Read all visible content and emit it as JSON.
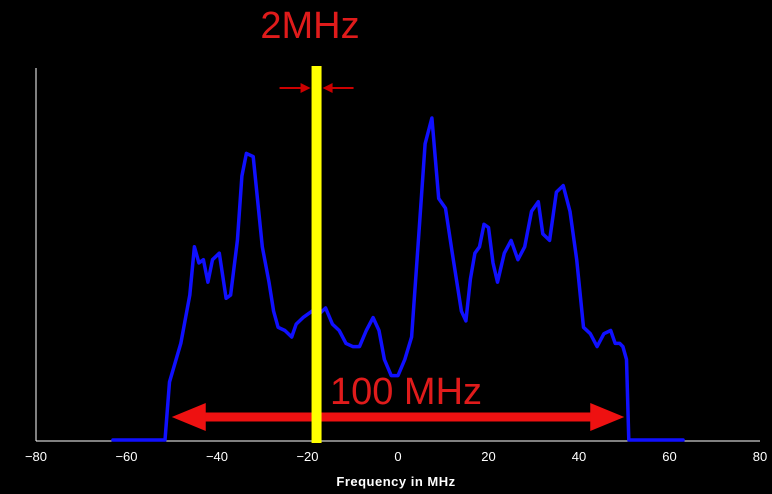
{
  "chart_data": {
    "type": "line",
    "title": "",
    "xlabel": "Frequency in MHz",
    "ylabel": "",
    "xlim": [
      -80,
      80
    ],
    "ylim": [
      0,
      1
    ],
    "x_ticks": [
      -80,
      -60,
      -40,
      -20,
      0,
      20,
      40,
      60,
      80
    ],
    "x_tick_labels": [
      "−80",
      "−60",
      "−40",
      "−20",
      "0",
      "20",
      "40",
      "60",
      "80"
    ],
    "grid": false,
    "legend": "none",
    "series": [
      {
        "color": "#1010ff",
        "x": [
          -63,
          -51.5,
          -50.5,
          -48,
          -46,
          -45,
          -44,
          -43,
          -42,
          -41,
          -39.5,
          -38,
          -37,
          -35.5,
          -34.5,
          -33.5,
          -32,
          -30,
          -28.5,
          -27.5,
          -26.5,
          -25,
          -23.5,
          -22.5,
          -21,
          -19,
          -17.5,
          -16,
          -14.5,
          -13,
          -11.5,
          -10,
          -8.5,
          -7,
          -5.5,
          -4.2,
          -3,
          -1.5,
          0,
          1.5,
          3,
          4.5,
          6,
          7.5,
          9,
          10.5,
          12,
          14,
          15,
          16,
          17,
          18,
          19,
          20,
          21,
          22,
          23.5,
          25,
          26.5,
          28,
          29.5,
          31,
          32,
          33.5,
          35,
          36.5,
          38,
          39.5,
          41,
          42.5,
          44,
          45.5,
          47,
          48,
          49,
          49.7,
          50.5,
          51,
          51.5,
          63
        ],
        "values": [
          0,
          0,
          0.18,
          0.3,
          0.45,
          0.6,
          0.55,
          0.56,
          0.49,
          0.56,
          0.58,
          0.44,
          0.45,
          0.62,
          0.82,
          0.89,
          0.88,
          0.6,
          0.49,
          0.4,
          0.35,
          0.34,
          0.32,
          0.36,
          0.38,
          0.4,
          0.39,
          0.41,
          0.36,
          0.34,
          0.3,
          0.29,
          0.29,
          0.34,
          0.38,
          0.34,
          0.25,
          0.2,
          0.2,
          0.25,
          0.32,
          0.62,
          0.92,
          1.0,
          0.75,
          0.72,
          0.58,
          0.4,
          0.37,
          0.5,
          0.58,
          0.6,
          0.67,
          0.66,
          0.55,
          0.49,
          0.58,
          0.62,
          0.56,
          0.6,
          0.71,
          0.74,
          0.64,
          0.62,
          0.77,
          0.79,
          0.71,
          0.56,
          0.35,
          0.33,
          0.29,
          0.33,
          0.34,
          0.3,
          0.3,
          0.29,
          0.25,
          0,
          0,
          0
        ]
      }
    ],
    "annotations": {
      "band_marker": {
        "x": -18,
        "color": "#ffff00"
      },
      "narrow_label": "2MHz",
      "wide_label": "100 MHz",
      "wide_span": [
        -50,
        50
      ],
      "arrow_color": "#ee1111",
      "small_arrow_color": "#cc0000"
    }
  }
}
